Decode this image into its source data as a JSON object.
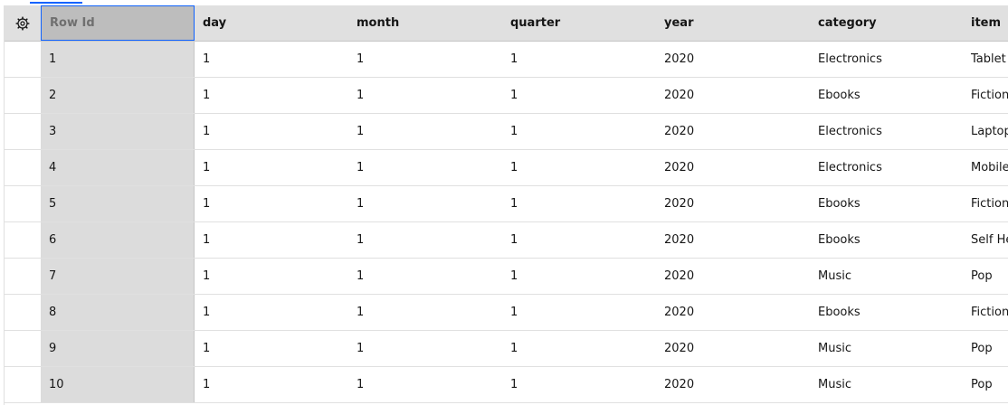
{
  "table": {
    "columns": {
      "row_id": "Row Id",
      "day": "day",
      "month": "month",
      "quarter": "quarter",
      "year": "year",
      "category": "category",
      "item": "item"
    },
    "settings_icon": "gear-icon",
    "rows": [
      {
        "row_id": "1",
        "day": "1",
        "month": "1",
        "quarter": "1",
        "year": "2020",
        "category": "Electronics",
        "item": "Tablet"
      },
      {
        "row_id": "2",
        "day": "1",
        "month": "1",
        "quarter": "1",
        "year": "2020",
        "category": "Ebooks",
        "item": "Fiction"
      },
      {
        "row_id": "3",
        "day": "1",
        "month": "1",
        "quarter": "1",
        "year": "2020",
        "category": "Electronics",
        "item": "Laptop"
      },
      {
        "row_id": "4",
        "day": "1",
        "month": "1",
        "quarter": "1",
        "year": "2020",
        "category": "Electronics",
        "item": "Mobile"
      },
      {
        "row_id": "5",
        "day": "1",
        "month": "1",
        "quarter": "1",
        "year": "2020",
        "category": "Ebooks",
        "item": "Fiction"
      },
      {
        "row_id": "6",
        "day": "1",
        "month": "1",
        "quarter": "1",
        "year": "2020",
        "category": "Ebooks",
        "item": "Self He"
      },
      {
        "row_id": "7",
        "day": "1",
        "month": "1",
        "quarter": "1",
        "year": "2020",
        "category": "Music",
        "item": "Pop"
      },
      {
        "row_id": "8",
        "day": "1",
        "month": "1",
        "quarter": "1",
        "year": "2020",
        "category": "Ebooks",
        "item": "Fiction"
      },
      {
        "row_id": "9",
        "day": "1",
        "month": "1",
        "quarter": "1",
        "year": "2020",
        "category": "Music",
        "item": "Pop"
      },
      {
        "row_id": "10",
        "day": "1",
        "month": "1",
        "quarter": "1",
        "year": "2020",
        "category": "Music",
        "item": "Pop"
      }
    ]
  },
  "colors": {
    "accent": "#0f62fe",
    "header_bg": "#e0e0e0",
    "row_id_bg": "#dcdcdc",
    "row_id_header_bg": "#bdbdbd"
  }
}
